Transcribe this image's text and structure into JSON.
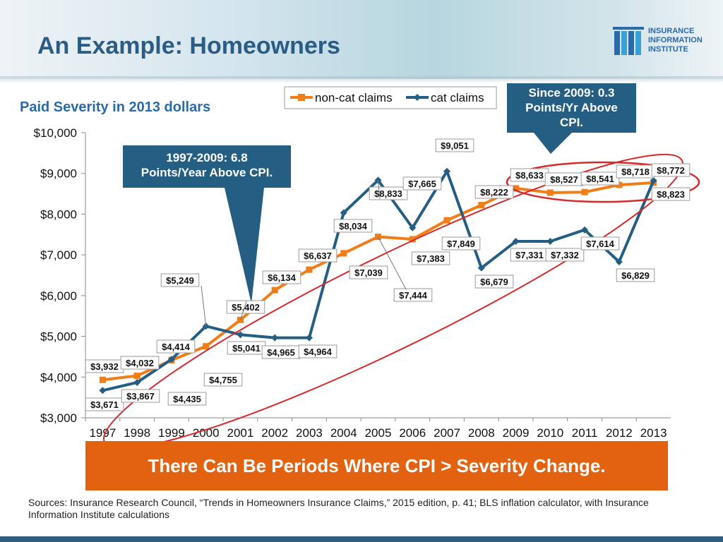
{
  "page": {
    "title": "An Example: Homeowners",
    "subtitle": "Paid Severity in 2013 dollars",
    "callout_left": [
      "1997-2009: 6.8",
      "Points/Year Above CPI."
    ],
    "callout_right": [
      "Since 2009: 0.3",
      "Points/Yr Above",
      "CPI."
    ],
    "banner": "There Can Be Periods Where CPI > Severity Change.",
    "sources": "Sources: Insurance Research Council, “Trends in Homeowners Insurance Claims,” 2015 edition,  p. 41; BLS inflation calculator, with Insurance Information Institute calculations",
    "logo_lines": [
      "INSURANCE",
      "INFORMATION",
      "INSTITUTE"
    ]
  },
  "colors": {
    "title": "#2a5c86",
    "non_cat": "#f07d16",
    "cat": "#255e83",
    "callout_bg": "#255e83",
    "banner_bg": "#e3620f",
    "ellipse": "#d42a2a"
  },
  "chart_data": {
    "type": "line",
    "x": [
      "1997",
      "1998",
      "1999",
      "2000",
      "2001",
      "2002",
      "2003",
      "2004",
      "2005",
      "2006",
      "2007",
      "2008",
      "2009",
      "2010",
      "2011",
      "2012",
      "2013"
    ],
    "ylim": [
      3000,
      10000
    ],
    "yticks": [
      "$3,000",
      "$4,000",
      "$5,000",
      "$6,000",
      "$7,000",
      "$8,000",
      "$9,000",
      "$10,000"
    ],
    "grid": false,
    "legend_position": "top-center",
    "series": [
      {
        "name": "non-cat claims",
        "color": "#f07d16",
        "marker": "square",
        "values": [
          3932,
          4032,
          4414,
          4755,
          5402,
          6134,
          6637,
          7039,
          7444,
          7383,
          7849,
          8222,
          8633,
          8527,
          8541,
          8718,
          8772
        ],
        "labels": [
          "$3,932",
          "$4,032",
          "$4,414",
          "$4,755",
          "$5,402",
          "$6,134",
          "$6,637",
          "$7,039",
          "$7,444",
          "$7,383",
          "$7,849",
          "$8,222",
          "$8,633",
          "$8,527",
          "$8,541",
          "$8,718",
          "$8,772"
        ]
      },
      {
        "name": "cat claims",
        "color": "#255e83",
        "marker": "diamond",
        "values": [
          3671,
          3867,
          4435,
          5249,
          5041,
          4965,
          4964,
          8034,
          8833,
          7665,
          9051,
          6679,
          7331,
          7332,
          7614,
          6829,
          8823
        ],
        "labels": [
          "$3,671",
          "$3,867",
          "$4,435",
          "$5,249",
          "$5,041",
          "$4,965",
          "$4,964",
          "$8,034",
          "$8,833",
          "$7,665",
          "$9,051",
          "$6,679",
          "$7,331",
          "$7,332",
          "$7,614",
          "$6,829",
          "$8,823"
        ]
      }
    ]
  }
}
